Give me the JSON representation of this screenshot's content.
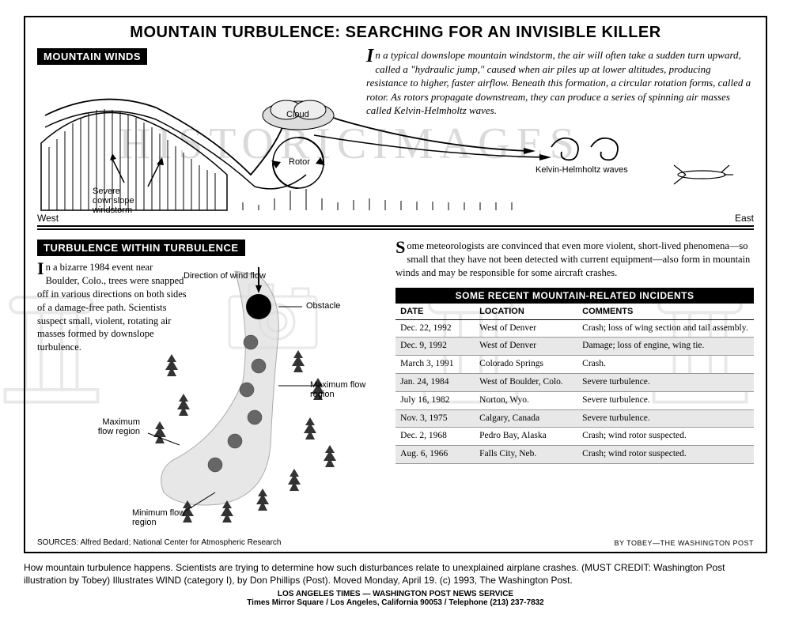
{
  "title": "MOUNTAIN TURBULENCE: SEARCHING FOR AN INVISIBLE KILLER",
  "section1": {
    "header": "MOUNTAIN WINDS",
    "intro_dropcap": "I",
    "intro": "n a typical downslope mountain windstorm, the air will often take a sudden turn upward, called a \"hydraulic jump,\" caused when air piles up at lower altitudes, producing resistance to higher, faster airflow. Beneath this formation, a circular rotation forms, called a rotor. As rotors propagate downstream, they can produce a series of spinning air masses called Kelvin-Helmholtz waves.",
    "labels": {
      "cloud": "Cloud",
      "rotor": "Rotor",
      "severe": "Severe downslope windstorm",
      "kh": "Kelvin-Helmholtz waves",
      "west": "West",
      "east": "East"
    }
  },
  "section2": {
    "header": "TURBULENCE WITHIN TURBULENCE",
    "text_dropcap": "I",
    "text": "n a bizarre 1984 event near Boulder, Colo., trees were snapped off in various directions on both sides of a damage-free path. Scientists suspect small, violent, rotating air masses formed by downslope turbulence.",
    "labels": {
      "direction": "Direction of wind flow",
      "obstacle": "Obstacle",
      "maxflow": "Maximum flow region",
      "maxflow2": "Maximum flow region",
      "minflow": "Minimum flow region"
    }
  },
  "section3": {
    "text_dropcap": "S",
    "text": "ome meteorologists are convinced that even more violent, short-lived phenomena—so small that they have not been detected with current equipment—also form in mountain winds and may be responsible for some aircraft crashes.",
    "table_header": "SOME RECENT MOUNTAIN-RELATED INCIDENTS",
    "columns": [
      "DATE",
      "LOCATION",
      "COMMENTS"
    ],
    "rows": [
      [
        "Dec. 22, 1992",
        "West of Denver",
        "Crash; loss of wing section and tail assembly."
      ],
      [
        "Dec. 9, 1992",
        "West of Denver",
        "Damage; loss of engine, wing tie."
      ],
      [
        "March 3, 1991",
        "Colorado Springs",
        "Crash."
      ],
      [
        "Jan. 24, 1984",
        "West of Boulder, Colo.",
        "Severe turbulence."
      ],
      [
        "July 16, 1982",
        "Norton, Wyo.",
        "Severe turbulence."
      ],
      [
        "Nov. 3, 1975",
        "Calgary, Canada",
        "Severe turbulence."
      ],
      [
        "Dec. 2, 1968",
        "Pedro Bay, Alaska",
        "Crash; wind rotor suspected."
      ],
      [
        "Aug. 6, 1966",
        "Falls City, Neb.",
        "Crash; wind rotor suspected."
      ]
    ]
  },
  "sources": "SOURCES: Alfred Bedard; National Center for Atmospheric Research",
  "credit": "BY TOBEY—THE WASHINGTON POST",
  "caption": "How mountain turbulence happens. Scientists are trying to determine how such disturbances relate to unexplained airplane crashes. (MUST CREDIT: Washington Post illustration by Tobey) Illustrates WIND (category I), by Don Phillips (Post). Moved Monday, April 19. (c) 1993, The Washington Post.",
  "service1": "LOS ANGELES TIMES — WASHINGTON POST NEWS SERVICE",
  "service2": "Times Mirror Square / Los Angeles, California 90053 / Telephone (213) 237-7832",
  "colors": {
    "black": "#000000",
    "white": "#ffffff",
    "row_shade": "#e8e8e8",
    "watermark": "rgba(150,150,150,0.35)"
  }
}
